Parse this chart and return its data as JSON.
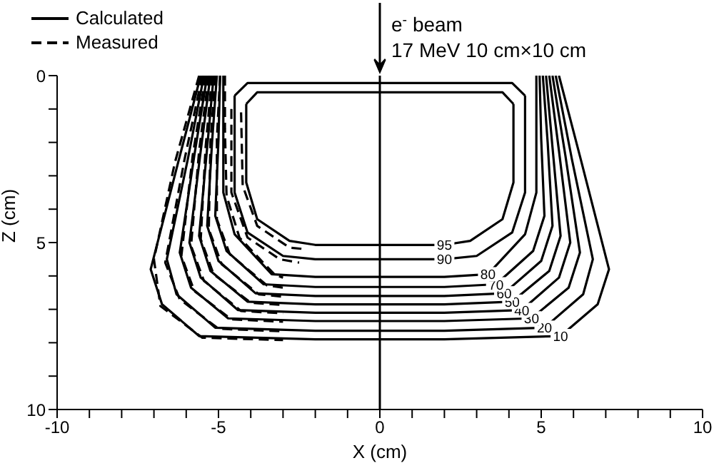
{
  "chart_data": {
    "type": "line",
    "xlabel": "X (cm)",
    "ylabel": "Z (cm)",
    "xlim": [
      -10,
      10
    ],
    "ylim": [
      10,
      0
    ],
    "xticks": [
      -10,
      {
        "value": -9,
        "label": null
      },
      {
        "value": -8,
        "label": null
      },
      {
        "value": -7,
        "label": null
      },
      {
        "value": -6,
        "label": null
      },
      -5,
      {
        "value": -4,
        "label": null
      },
      {
        "value": -3,
        "label": null
      },
      {
        "value": -2,
        "label": null
      },
      {
        "value": -1,
        "label": null
      },
      0,
      {
        "value": 1,
        "label": null
      },
      {
        "value": 2,
        "label": null
      },
      {
        "value": 3,
        "label": null
      },
      {
        "value": 4,
        "label": null
      },
      5,
      {
        "value": 6,
        "label": null
      },
      {
        "value": 7,
        "label": null
      },
      {
        "value": 8,
        "label": null
      },
      {
        "value": 9,
        "label": null
      },
      10
    ],
    "yticks": [
      0,
      {
        "value": 1,
        "label": null
      },
      {
        "value": 2,
        "label": null
      },
      {
        "value": 3,
        "label": null
      },
      {
        "value": 4,
        "label": null
      },
      5,
      {
        "value": 6,
        "label": null
      },
      {
        "value": 7,
        "label": null
      },
      {
        "value": 8,
        "label": null
      },
      {
        "value": 9,
        "label": null
      },
      10
    ],
    "ref_lines": [
      {
        "axis": "x",
        "value": 0,
        "color": "#000000"
      }
    ],
    "annotations": [
      "Calculated",
      "Measured",
      "e$^{-}$ beam",
      "17 MeV 10 cm×10 cm"
    ],
    "series": [
      {
        "name": "10",
        "color": "#000000",
        "line_style": "solid",
        "x": [
          -5.55,
          -6.25,
          -7.1,
          -6.75,
          -5.6,
          -2,
          0,
          2,
          5.6,
          6.75,
          7.1,
          6.25,
          5.55
        ],
        "values": [
          0,
          2.6,
          5.8,
          6.85,
          7.8,
          7.9,
          7.9,
          7.9,
          7.8,
          6.85,
          5.8,
          2.6,
          0
        ]
      },
      {
        "name": "20",
        "color": "#000000",
        "line_style": "solid",
        "x": [
          -5.45,
          -5.95,
          -6.6,
          -6.3,
          -5.1,
          -2,
          0,
          2,
          5.1,
          6.3,
          6.6,
          5.95,
          5.45
        ],
        "values": [
          0,
          2.5,
          5.5,
          6.55,
          7.55,
          7.64,
          7.64,
          7.64,
          7.55,
          6.55,
          5.5,
          2.5,
          0
        ]
      },
      {
        "name": "30",
        "color": "#000000",
        "line_style": "solid",
        "x": [
          -5.35,
          -5.75,
          -6.2,
          -5.85,
          -4.7,
          -2,
          0,
          2,
          4.7,
          5.85,
          6.2,
          5.75,
          5.35
        ],
        "values": [
          0,
          2.4,
          5.3,
          6.35,
          7.27,
          7.35,
          7.35,
          7.35,
          7.27,
          6.35,
          5.3,
          2.4,
          0
        ]
      },
      {
        "name": "40",
        "color": "#000000",
        "line_style": "solid",
        "x": [
          -5.25,
          -5.55,
          -5.9,
          -5.55,
          -4.4,
          -2,
          0,
          2,
          4.4,
          5.55,
          5.9,
          5.55,
          5.25
        ],
        "values": [
          0,
          2.25,
          5,
          6.05,
          7.02,
          7.1,
          7.1,
          7.1,
          7.02,
          6.05,
          5,
          2.25,
          0
        ]
      },
      {
        "name": "50",
        "color": "#000000",
        "line_style": "solid",
        "x": [
          -5.15,
          -5.35,
          -5.6,
          -5.25,
          -4.1,
          -2,
          0,
          2,
          4.1,
          5.25,
          5.6,
          5.35,
          5.15
        ],
        "values": [
          0,
          2.15,
          4.8,
          5.85,
          6.77,
          6.85,
          6.85,
          6.85,
          6.77,
          5.85,
          4.8,
          2.15,
          0
        ]
      },
      {
        "name": "60",
        "color": "#000000",
        "line_style": "solid",
        "x": [
          -5.05,
          -5.2,
          -5.35,
          -5,
          -3.85,
          -2,
          0,
          2,
          3.85,
          5,
          5.35,
          5.2,
          5.05
        ],
        "values": [
          0,
          2,
          4.5,
          5.55,
          6.52,
          6.6,
          6.6,
          6.6,
          6.52,
          5.55,
          4.5,
          2,
          0
        ]
      },
      {
        "name": "70",
        "color": "#000000",
        "line_style": "solid",
        "x": [
          -4.95,
          -5,
          -5.1,
          -4.75,
          -3.6,
          -2,
          0,
          2,
          3.6,
          4.75,
          5.1,
          5,
          4.95
        ],
        "values": [
          0,
          1.9,
          4.2,
          5.25,
          6.25,
          6.33,
          6.33,
          6.33,
          6.25,
          5.25,
          4.2,
          1.9,
          0
        ]
      },
      {
        "name": "80",
        "color": "#000000",
        "line_style": "solid",
        "x": [
          -4.85,
          -4.85,
          -4.85,
          -4.5,
          -3.35,
          -2,
          0,
          2,
          3.35,
          4.5,
          4.85,
          4.85,
          4.85
        ],
        "values": [
          0,
          1.6,
          3.5,
          4.75,
          5.95,
          6.03,
          6.03,
          6.03,
          5.95,
          4.75,
          3.5,
          1.6,
          0
        ]
      },
      {
        "name": "90",
        "color": "#000000",
        "line_style": "solid",
        "x": [
          -4.5,
          -4.5,
          -4.5,
          -4.1,
          -3,
          -2,
          0,
          1,
          2,
          3,
          4.1,
          4.5,
          4.5
        ],
        "values": [
          0.6,
          2,
          3.5,
          4.7,
          5.4,
          5.5,
          5.5,
          5.5,
          5.5,
          5.4,
          4.7,
          3.5,
          0.6
        ]
      },
      {
        "name": "95",
        "color": "#000000",
        "line_style": "solid",
        "x": [
          -4.14,
          -4.14,
          -4.14,
          -3.8,
          -2.8,
          -2,
          0,
          1,
          2,
          2.8,
          3.8,
          4.14,
          4.14
        ],
        "values": [
          0.85,
          2,
          3.2,
          4.3,
          4.95,
          5.07,
          5.07,
          5.07,
          5.07,
          4.95,
          4.3,
          3.2,
          0.85
        ]
      },
      {
        "color": "#000000",
        "line_style": "solid",
        "x": [
          -4.5,
          -4.1,
          0,
          4.1,
          4.5
        ],
        "values": [
          0.6,
          0.22,
          0.22,
          0.22,
          0.6
        ]
      },
      {
        "color": "#000000",
        "line_style": "solid",
        "x": [
          -4.14,
          -3.8,
          0,
          3.8,
          4.14
        ],
        "values": [
          0.85,
          0.5,
          0.5,
          0.5,
          0.85
        ]
      },
      {
        "color": "#000000",
        "line_style": "dashed",
        "x": [
          -5.6,
          -6.35,
          -7,
          -6.8,
          -5.5,
          -3
        ],
        "values": [
          0,
          2.6,
          5.5,
          6.9,
          7.85,
          7.92
        ]
      },
      {
        "color": "#000000",
        "line_style": "dashed",
        "x": [
          -5.5,
          -6.05,
          -6.65,
          -6.2,
          -5,
          -3
        ],
        "values": [
          0,
          2.5,
          5.6,
          6.7,
          7.58,
          7.66
        ]
      },
      {
        "color": "#000000",
        "line_style": "dashed",
        "x": [
          -5.4,
          -5.8,
          -6.15,
          -5.75,
          -4.6,
          -3
        ],
        "values": [
          0,
          2.4,
          5.4,
          6.45,
          7.3,
          7.37
        ]
      },
      {
        "color": "#000000",
        "line_style": "dashed",
        "x": [
          -5.3,
          -5.6,
          -5.85,
          -5.45,
          -4.3,
          -3
        ],
        "values": [
          0,
          2.25,
          5.1,
          6.15,
          7.05,
          7.12
        ]
      },
      {
        "color": "#000000",
        "line_style": "dashed",
        "x": [
          -5.2,
          -5.4,
          -5.55,
          -5.15,
          -4,
          -3
        ],
        "values": [
          0,
          2.15,
          4.9,
          5.95,
          6.8,
          6.87
        ]
      },
      {
        "color": "#000000",
        "line_style": "dashed",
        "x": [
          -5.1,
          -5.25,
          -5.3,
          -4.9,
          -3.75,
          -3
        ],
        "values": [
          0,
          2,
          4.6,
          5.65,
          6.55,
          6.62
        ]
      },
      {
        "color": "#000000",
        "line_style": "dashed",
        "x": [
          -4.95,
          -5.05,
          -5.05,
          -4.65,
          -3.5,
          -3
        ],
        "values": [
          0,
          1.9,
          4.3,
          5.35,
          6.28,
          6.35
        ]
      },
      {
        "color": "#000000",
        "line_style": "dashed",
        "x": [
          -4.8,
          -4.8,
          -4.75,
          -4.35,
          -3.25,
          -3
        ],
        "values": [
          0,
          1.6,
          3.6,
          4.85,
          5.97,
          6.05
        ]
      },
      {
        "color": "#000000",
        "line_style": "dashed",
        "x": [
          -4.6,
          -4.6,
          -4.1,
          -3.1,
          -2.5
        ],
        "values": [
          1,
          3.5,
          4.85,
          5.5,
          5.6
        ]
      },
      {
        "color": "#000000",
        "line_style": "dashed",
        "x": [
          -4.3,
          -4.25,
          -3.8,
          -2.8,
          -2.3
        ],
        "values": [
          1.1,
          3.3,
          4.5,
          5.15,
          5.2
        ]
      }
    ]
  }
}
